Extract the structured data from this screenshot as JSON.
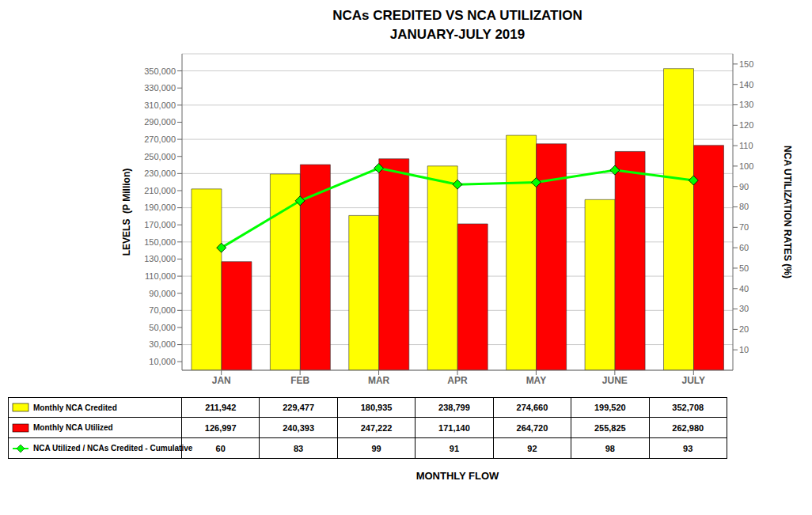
{
  "chart_data": {
    "type": "bar",
    "title": "NCAs CREDITED VS NCA UTILIZATION",
    "subtitle": "JANUARY-JULY 2019",
    "categories": [
      "JAN",
      "FEB",
      "MAR",
      "APR",
      "MAY",
      "JUNE",
      "JULY"
    ],
    "series": [
      {
        "name": "Monthly NCA Credited",
        "type": "bar",
        "color": "#FFFF00",
        "values": [
          211942,
          229477,
          180935,
          238799,
          274660,
          199520,
          352708
        ],
        "value_labels": [
          "211,942",
          "229,477",
          "180,935",
          "238,799",
          "274,660",
          "199,520",
          "352,708"
        ]
      },
      {
        "name": "Monthly NCA Utilized",
        "type": "bar",
        "color": "#FF0000",
        "values": [
          126997,
          240393,
          247222,
          171140,
          264720,
          255825,
          262980
        ],
        "value_labels": [
          "126,997",
          "240,393",
          "247,222",
          "171,140",
          "264,720",
          "255,825",
          "262,980"
        ]
      },
      {
        "name": "NCA Utilized / NCAs Credited - Cumulative",
        "type": "line",
        "axis": "y2",
        "color": "#00FF00",
        "marker": "diamond",
        "values": [
          60,
          83,
          99,
          91,
          92,
          98,
          93
        ]
      }
    ],
    "xlabel": "MONTHLY FLOW",
    "ylabel": "LEVELS  (P Million)",
    "y2label": "NCA UTILIZATION RATES (%)",
    "ylim": [
      0,
      370000
    ],
    "yticks": [
      {
        "value": 10000,
        "label": "10,000"
      },
      {
        "value": 30000,
        "label": "30,000"
      },
      {
        "value": 50000,
        "label": "50,000"
      },
      {
        "value": 70000,
        "label": "70,000"
      },
      {
        "value": 90000,
        "label": "90,000"
      },
      {
        "value": 110000,
        "label": "110,000"
      },
      {
        "value": 130000,
        "label": "130,000"
      },
      {
        "value": 150000,
        "label": "150,000"
      },
      {
        "value": 170000,
        "label": "170,000"
      },
      {
        "value": 190000,
        "label": "190,000"
      },
      {
        "value": 210000,
        "label": "210,000"
      },
      {
        "value": 230000,
        "label": "230,000"
      },
      {
        "value": 250000,
        "label": "250,000"
      },
      {
        "value": 270000,
        "label": "270,000"
      },
      {
        "value": 290000,
        "label": "290,000"
      },
      {
        "value": 310000,
        "label": "310,000"
      },
      {
        "value": 330000,
        "label": "330,000"
      },
      {
        "value": 350000,
        "label": "350,000"
      }
    ],
    "y2lim": [
      0,
      155
    ],
    "y2ticks": [
      10,
      20,
      30,
      40,
      50,
      60,
      70,
      80,
      90,
      100,
      110,
      120,
      130,
      140,
      150
    ],
    "grid": true
  }
}
